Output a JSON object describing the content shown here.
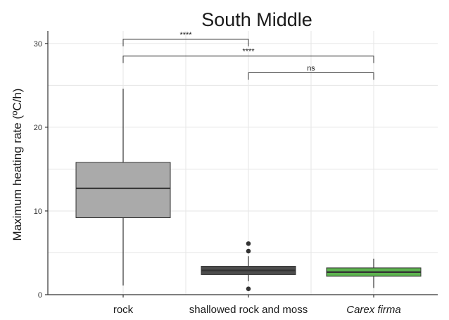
{
  "chart_data": {
    "type": "box",
    "title": "South Middle",
    "ylabel": "Maximum heating rate (ºC/h)",
    "xlabel": "",
    "ylim": [
      0,
      31.5
    ],
    "yticks": [
      0,
      10,
      20,
      30
    ],
    "grid": true,
    "legend": "none",
    "categories": [
      "rock",
      "shallowed rock and moss",
      "Carex firma"
    ],
    "italic_categories": [
      "Carex firma"
    ],
    "boxes": [
      {
        "category": "rock",
        "whisker_low": 1.1,
        "q1": 9.2,
        "median": 12.7,
        "q3": 15.8,
        "whisker_high": 24.6,
        "outliers": [],
        "color": "#aaaaaa"
      },
      {
        "category": "shallowed rock and moss",
        "whisker_low": 1.6,
        "q1": 2.4,
        "median": 2.9,
        "q3": 3.4,
        "whisker_high": 4.6,
        "outliers": [
          6.1,
          5.2,
          0.7
        ],
        "color": "#4d4d4d"
      },
      {
        "category": "Carex firma",
        "whisker_low": 0.8,
        "q1": 2.2,
        "median": 2.7,
        "q3": 3.2,
        "whisker_high": 4.3,
        "outliers": [],
        "color": "#5db34f"
      }
    ],
    "comparisons": [
      {
        "from": 0,
        "to": 1,
        "y": 30.5,
        "label": "****"
      },
      {
        "from": 0,
        "to": 2,
        "y": 28.5,
        "label": "****"
      },
      {
        "from": 1,
        "to": 2,
        "y": 26.5,
        "label": "ns"
      }
    ]
  }
}
